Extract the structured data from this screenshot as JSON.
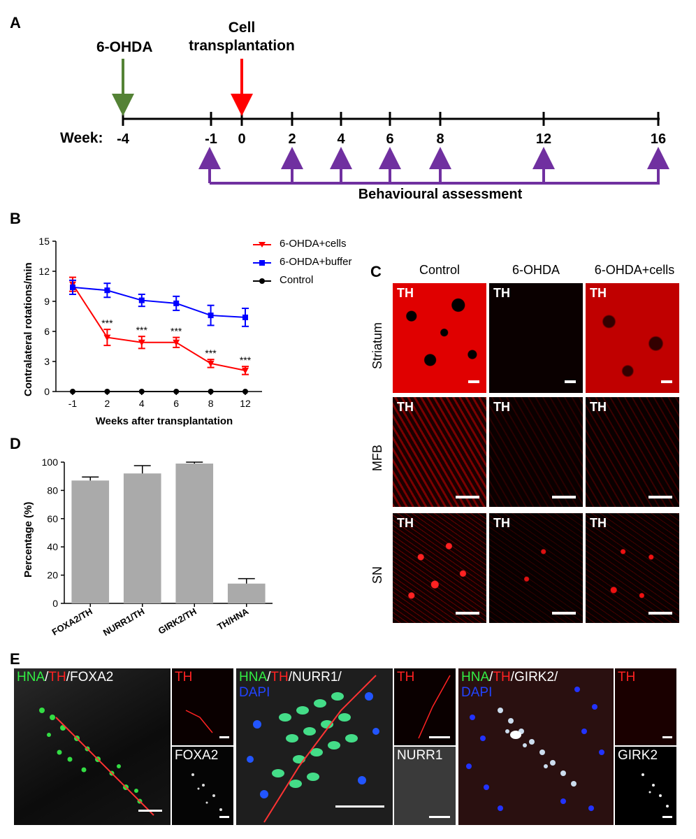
{
  "panels": {
    "A": "A",
    "B": "B",
    "C": "C",
    "D": "D",
    "E": "E"
  },
  "timeline": {
    "week_label": "Week:",
    "lesion_label": "6-OHDA",
    "transplant_label_line1": "Cell",
    "transplant_label_line2": "transplantation",
    "ticks": [
      "-4",
      "-1",
      "0",
      "2",
      "4",
      "6",
      "8",
      "12",
      "16"
    ],
    "behaviour_label": "Behavioural assessment",
    "colors": {
      "lesion": "#548235",
      "transplant": "#ff0000",
      "behaviour": "#7030a0"
    }
  },
  "chart_data": [
    {
      "type": "line",
      "title": "",
      "xlabel": "Weeks after transplantation",
      "ylabel": "Contralateral rotations/min",
      "categories": [
        "-1",
        "2",
        "4",
        "6",
        "8",
        "12"
      ],
      "ylim": [
        0,
        15
      ],
      "yticks": [
        "0",
        "3",
        "6",
        "9",
        "12",
        "15"
      ],
      "legend_position": "top-right",
      "series": [
        {
          "name": "6-OHDA+cells",
          "color": "#ff0000",
          "marker": "triangle-down",
          "values": [
            10.7,
            5.4,
            4.9,
            4.9,
            2.8,
            2.1
          ],
          "errors": [
            0.7,
            0.8,
            0.6,
            0.5,
            0.4,
            0.4
          ],
          "annotations": [
            "",
            "***",
            "***",
            "***",
            "***",
            "***"
          ]
        },
        {
          "name": "6-OHDA+buffer",
          "color": "#0000ff",
          "marker": "square",
          "values": [
            10.4,
            10.1,
            9.1,
            8.8,
            7.6,
            7.4
          ],
          "errors": [
            0.7,
            0.7,
            0.6,
            0.7,
            1.0,
            0.9
          ],
          "annotations": [
            "",
            "",
            "",
            "",
            "",
            ""
          ]
        },
        {
          "name": "Control",
          "color": "#000000",
          "marker": "circle",
          "values": [
            0,
            0,
            0,
            0,
            0,
            0
          ],
          "errors": [
            0,
            0,
            0,
            0,
            0,
            0
          ],
          "annotations": [
            "",
            "",
            "",
            "",
            "",
            ""
          ]
        }
      ]
    },
    {
      "type": "bar",
      "title": "",
      "xlabel": "",
      "ylabel": "Percentage (%)",
      "categories": [
        "FOXA2/TH",
        "NURR1/TH",
        "GIRK2/TH",
        "TH/HNA"
      ],
      "values": [
        87,
        92,
        99,
        14
      ],
      "errors": [
        2.5,
        5.5,
        1,
        3.5
      ],
      "ylim": [
        0,
        100
      ],
      "yticks": [
        "0",
        "20",
        "40",
        "60",
        "80",
        "100"
      ],
      "bar_color": "#aaaaaa"
    }
  ],
  "panelC": {
    "columns": [
      "Control",
      "6-OHDA",
      "6-OHDA+cells"
    ],
    "rows": [
      "Striatum",
      "MFB",
      "SN"
    ],
    "stain": "TH"
  },
  "panelE": {
    "groups": [
      {
        "merged": [
          {
            "t": "HNA",
            "c": "#00ff00"
          },
          {
            "t": "/",
            "c": "#ffffff"
          },
          {
            "t": "TH",
            "c": "#ff0000"
          },
          {
            "t": "/FOXA2",
            "c": "#ffffff"
          }
        ],
        "top": "TH",
        "bottom": "FOXA2"
      },
      {
        "merged": [
          {
            "t": "HNA",
            "c": "#00ff00"
          },
          {
            "t": "/",
            "c": "#ffffff"
          },
          {
            "t": "TH",
            "c": "#ff0000"
          },
          {
            "t": "/NURR1/",
            "c": "#ffffff"
          },
          {
            "t": "\nDAPI",
            "c": "#0000ff"
          }
        ],
        "top": "TH",
        "bottom": "NURR1"
      },
      {
        "merged": [
          {
            "t": "HNA",
            "c": "#00ff00"
          },
          {
            "t": "/",
            "c": "#ffffff"
          },
          {
            "t": "TH",
            "c": "#ff0000"
          },
          {
            "t": "/GIRK2/",
            "c": "#ffffff"
          },
          {
            "t": "\nDAPI",
            "c": "#0000ff"
          }
        ],
        "top": "TH",
        "bottom": "GIRK2"
      }
    ]
  }
}
